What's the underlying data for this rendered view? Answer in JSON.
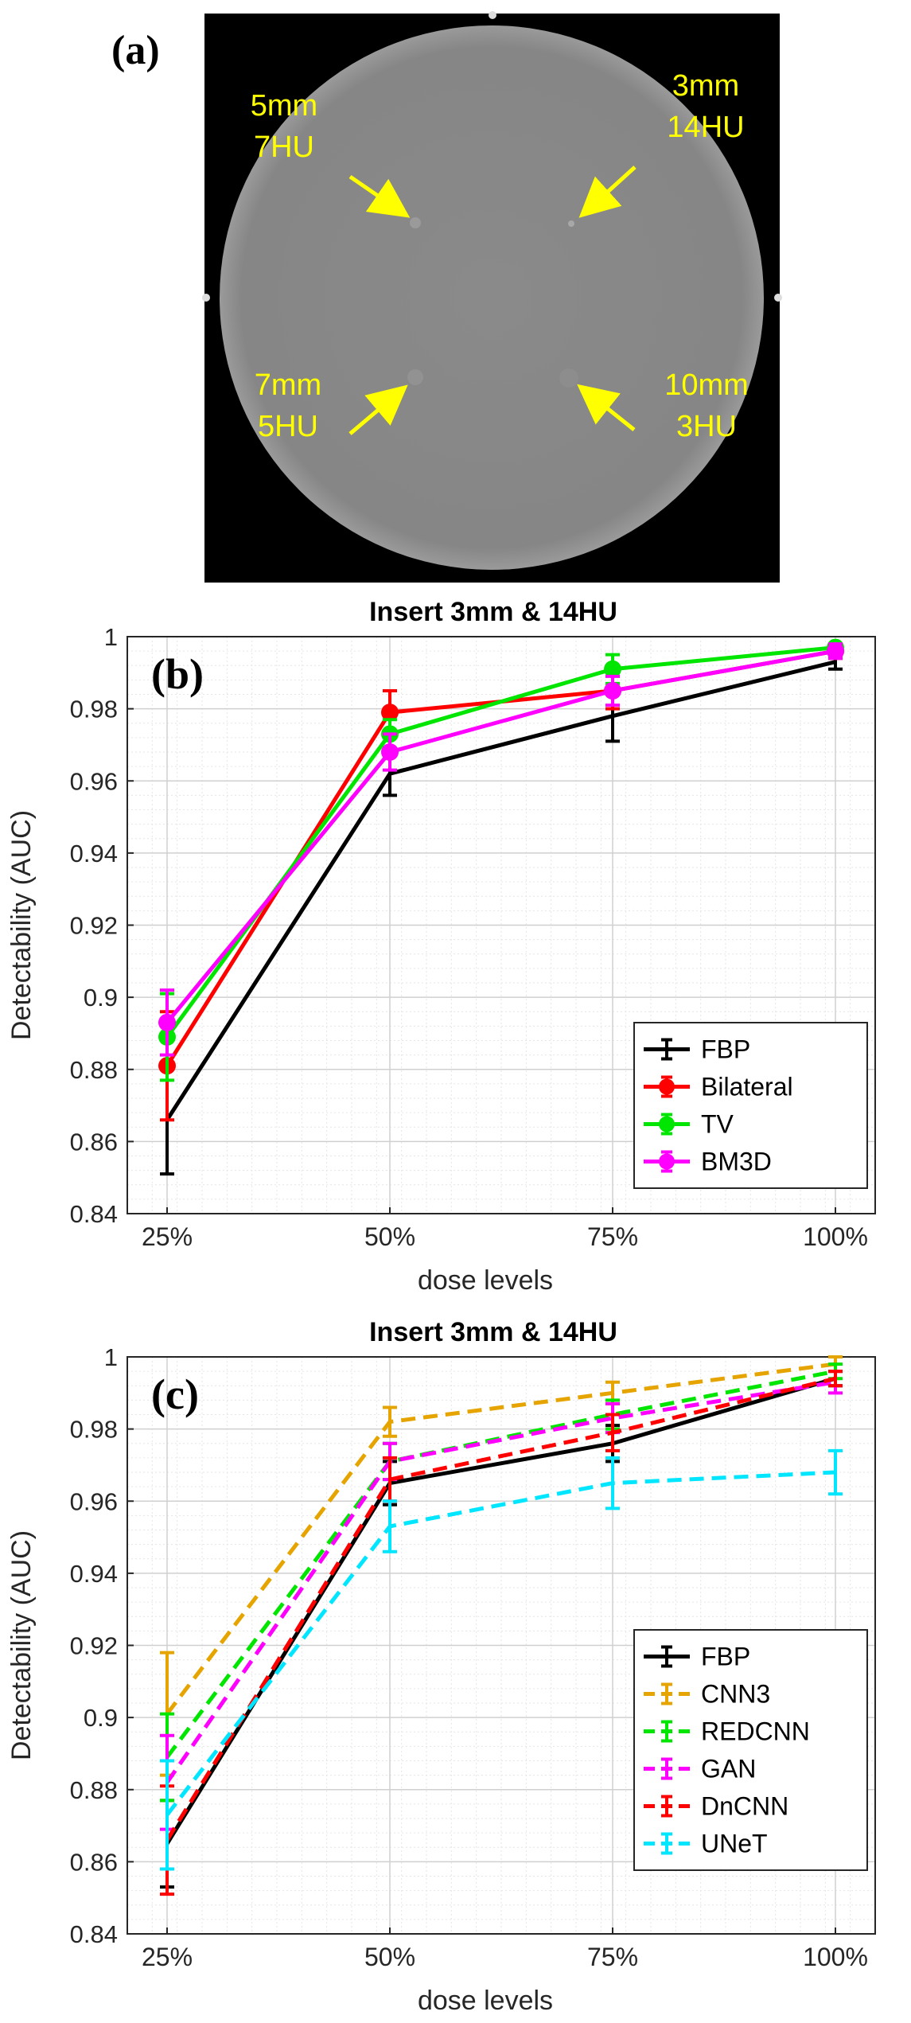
{
  "colors": {
    "fbp": "#000000",
    "bilateral": "#ff0000",
    "tv": "#00e600",
    "bm3d": "#ff00ff",
    "cnn3": "#e6a400",
    "redcnn": "#00e600",
    "gan": "#ff00ff",
    "dncnn": "#ff0000",
    "unet": "#00e6ff",
    "arrow": "#ffff00",
    "annotation": "#ffff00"
  },
  "panel_a": {
    "label": "(a)",
    "inserts": [
      {
        "size": "5mm",
        "contrast": "7HU"
      },
      {
        "size": "3mm",
        "contrast": "14HU"
      },
      {
        "size": "7mm",
        "contrast": "5HU"
      },
      {
        "size": "10mm",
        "contrast": "3HU"
      }
    ]
  },
  "chart_data": [
    {
      "id": "b",
      "panel_label": "(b)",
      "type": "line",
      "title": "Insert 3mm & 14HU",
      "xlabel": "dose levels",
      "ylabel": "Detectability (AUC)",
      "categories": [
        "25%",
        "50%",
        "75%",
        "100%"
      ],
      "ylim": [
        0.84,
        1.0
      ],
      "yticks": [
        0.84,
        0.86,
        0.88,
        0.9,
        0.92,
        0.94,
        0.96,
        0.98,
        1
      ],
      "ytick_labels": [
        "0.84",
        "0.86",
        "0.88",
        "0.9",
        "0.92",
        "0.94",
        "0.96",
        "0.98",
        "1"
      ],
      "grid": true,
      "legend_position": "bottom-right",
      "series": [
        {
          "name": "FBP",
          "color": "#000000",
          "style": "solid",
          "marker": "none",
          "values": [
            0.866,
            0.962,
            0.978,
            0.993
          ],
          "errors": [
            0.015,
            0.006,
            0.007,
            0.002
          ]
        },
        {
          "name": "Bilateral",
          "color": "#ff0000",
          "style": "solid",
          "marker": "circle",
          "values": [
            0.881,
            0.979,
            0.985,
            0.996
          ],
          "errors": [
            0.015,
            0.006,
            0.005,
            0.002
          ]
        },
        {
          "name": "TV",
          "color": "#00e600",
          "style": "solid",
          "marker": "circle",
          "values": [
            0.889,
            0.973,
            0.991,
            0.997
          ],
          "errors": [
            0.012,
            0.004,
            0.004,
            0.001
          ]
        },
        {
          "name": "BM3D",
          "color": "#ff00ff",
          "style": "solid",
          "marker": "circle",
          "values": [
            0.893,
            0.968,
            0.985,
            0.996
          ],
          "errors": [
            0.009,
            0.005,
            0.004,
            0.002
          ]
        }
      ]
    },
    {
      "id": "c",
      "panel_label": "(c)",
      "type": "line",
      "title": "Insert 3mm & 14HU",
      "xlabel": "dose levels",
      "ylabel": "Detectability (AUC)",
      "categories": [
        "25%",
        "50%",
        "75%",
        "100%"
      ],
      "ylim": [
        0.84,
        1.0
      ],
      "yticks": [
        0.84,
        0.86,
        0.88,
        0.9,
        0.92,
        0.94,
        0.96,
        0.98,
        1
      ],
      "ytick_labels": [
        "0.84",
        "0.86",
        "0.88",
        "0.9",
        "0.92",
        "0.94",
        "0.96",
        "0.98",
        "1"
      ],
      "grid": true,
      "legend_position": "bottom-right",
      "series": [
        {
          "name": "FBP",
          "color": "#000000",
          "style": "solid",
          "marker": "none",
          "values": [
            0.865,
            0.965,
            0.976,
            0.994
          ],
          "errors": [
            0.012,
            0.006,
            0.005,
            0.002
          ]
        },
        {
          "name": "CNN3",
          "color": "#e6a400",
          "style": "dashed",
          "marker": "none",
          "values": [
            0.901,
            0.982,
            0.99,
            0.998
          ],
          "errors": [
            0.017,
            0.004,
            0.003,
            0.002
          ]
        },
        {
          "name": "REDCNN",
          "color": "#00e600",
          "style": "dashed",
          "marker": "none",
          "values": [
            0.889,
            0.971,
            0.984,
            0.996
          ],
          "errors": [
            0.012,
            0.005,
            0.004,
            0.002
          ]
        },
        {
          "name": "GAN",
          "color": "#ff00ff",
          "style": "dashed",
          "marker": "none",
          "values": [
            0.882,
            0.971,
            0.983,
            0.993
          ],
          "errors": [
            0.013,
            0.005,
            0.004,
            0.003
          ]
        },
        {
          "name": "DnCNN",
          "color": "#ff0000",
          "style": "dashed",
          "marker": "none",
          "values": [
            0.866,
            0.966,
            0.979,
            0.994
          ],
          "errors": [
            0.015,
            0.006,
            0.005,
            0.002
          ]
        },
        {
          "name": "UNeT",
          "color": "#00e6ff",
          "style": "dashed",
          "marker": "none",
          "values": [
            0.873,
            0.953,
            0.965,
            0.968
          ],
          "errors": [
            0.015,
            0.007,
            0.007,
            0.006
          ]
        }
      ]
    }
  ]
}
